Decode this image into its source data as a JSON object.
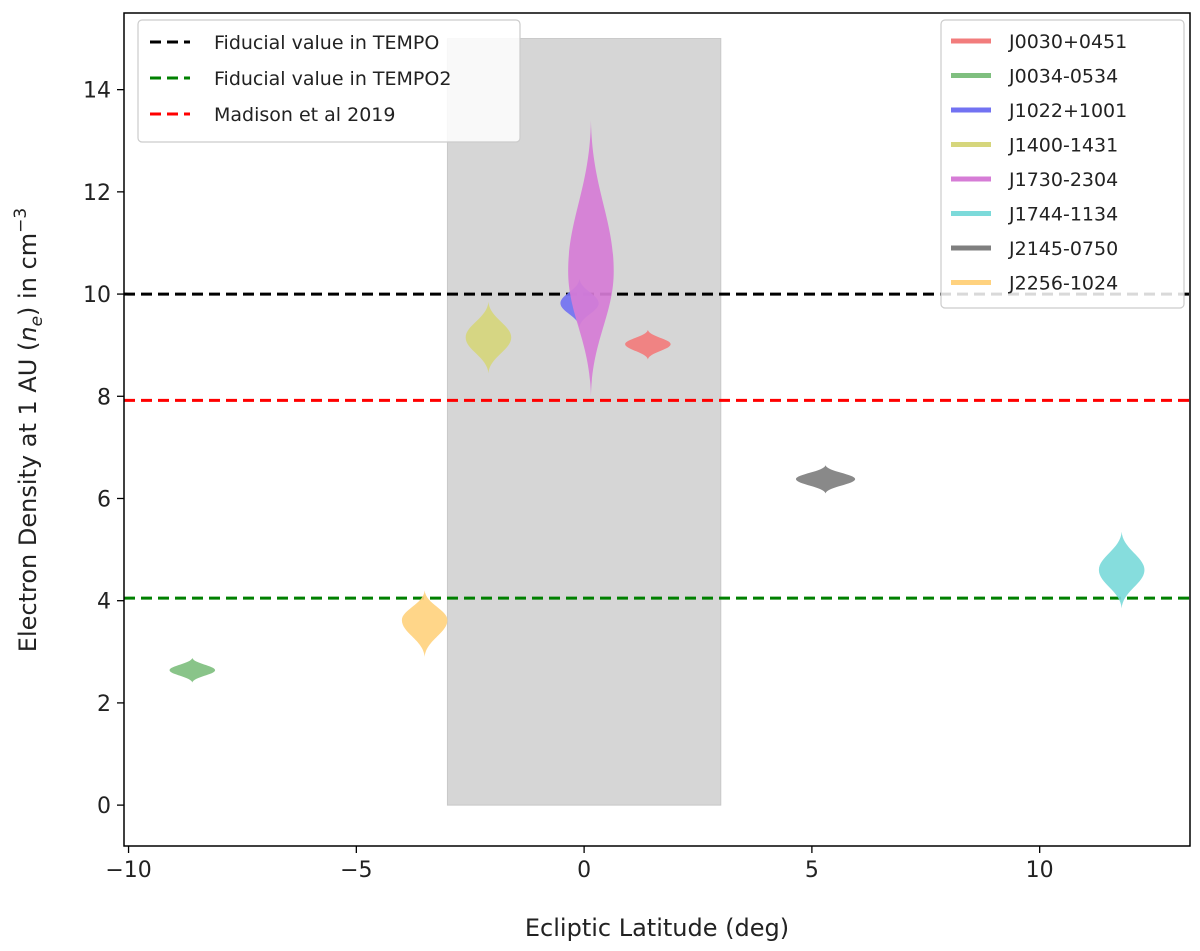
{
  "chart_data": {
    "type": "violin",
    "xlabel": "Ecliptic Latitude (deg)",
    "ylabel_main": "Electron Density at 1 AU (",
    "ylabel_symbol": "n",
    "ylabel_sub": "e",
    "ylabel_tail": ") in cm",
    "ylabel_sup": "−3",
    "xlim": [
      -10.1,
      13.3
    ],
    "ylim": [
      -0.8,
      15.5
    ],
    "xticks": [
      {
        "v": -10,
        "label": "−10"
      },
      {
        "v": -5,
        "label": "−5"
      },
      {
        "v": 0,
        "label": "0"
      },
      {
        "v": 5,
        "label": "5"
      },
      {
        "v": 10,
        "label": "10"
      }
    ],
    "yticks": [
      {
        "v": 0,
        "label": "0"
      },
      {
        "v": 2,
        "label": "2"
      },
      {
        "v": 4,
        "label": "4"
      },
      {
        "v": 6,
        "label": "6"
      },
      {
        "v": 8,
        "label": "8"
      },
      {
        "v": 10,
        "label": "10"
      },
      {
        "v": 12,
        "label": "12"
      },
      {
        "v": 14,
        "label": "14"
      }
    ],
    "shaded_region": {
      "x": [
        -3,
        3
      ],
      "y": [
        0,
        15
      ],
      "color": "#d6d6d6"
    },
    "hlines": [
      {
        "name": "Fiducial value in TEMPO",
        "y": 10.0,
        "color": "#000000"
      },
      {
        "name": "Fiducial value in TEMPO2",
        "y": 4.05,
        "color": "#008000"
      },
      {
        "name": "Madison et al 2019",
        "y": 7.92,
        "color": "#ff0000"
      }
    ],
    "series": [
      {
        "name": "J0030+0451",
        "x": 1.4,
        "center": 9.02,
        "half_width": 0.5,
        "top": 9.3,
        "bottom": 8.72,
        "color": "#f27c7c"
      },
      {
        "name": "J0034-0534",
        "x": -8.6,
        "center": 2.64,
        "half_width": 0.5,
        "top": 2.88,
        "bottom": 2.4,
        "color": "#7fbf7f"
      },
      {
        "name": "J1022+1001",
        "x": -0.1,
        "center": 9.82,
        "half_width": 0.42,
        "top": 10.3,
        "bottom": 9.35,
        "color": "#7272f2"
      },
      {
        "name": "J1400-1431",
        "x": -2.1,
        "center": 9.15,
        "half_width": 0.5,
        "top": 9.85,
        "bottom": 8.45,
        "color": "#d6d67c"
      },
      {
        "name": "J1730-2304",
        "x": 0.15,
        "center": 10.45,
        "half_width": 0.5,
        "top": 13.4,
        "bottom": 8.0,
        "color": "#d67cd6"
      },
      {
        "name": "J1744-1134",
        "x": 11.8,
        "center": 4.6,
        "half_width": 0.5,
        "top": 5.35,
        "bottom": 3.85,
        "color": "#7cdada"
      },
      {
        "name": "J2145-0750",
        "x": 5.3,
        "center": 6.38,
        "half_width": 0.65,
        "top": 6.65,
        "bottom": 6.1,
        "color": "#7f7f7f"
      },
      {
        "name": "J2256-1024",
        "x": -3.5,
        "center": 3.62,
        "half_width": 0.5,
        "top": 4.2,
        "bottom": 2.9,
        "color": "#ffd27f"
      }
    ]
  }
}
